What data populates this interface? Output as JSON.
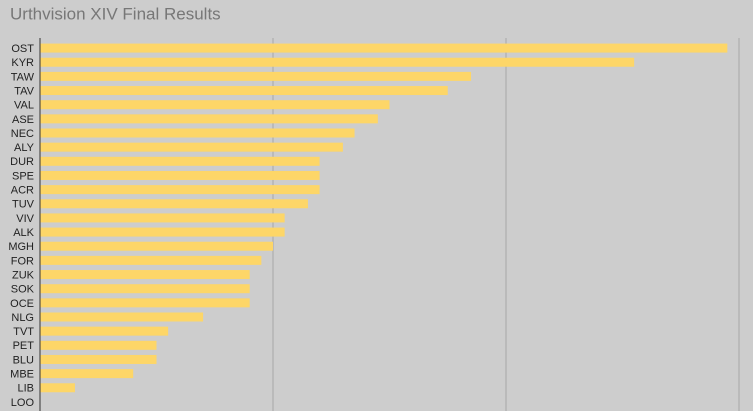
{
  "chart_data": {
    "type": "bar",
    "orientation": "horizontal",
    "title": "Urthvision XIV Final Results",
    "categories": [
      "OST",
      "KYR",
      "TAW",
      "TAV",
      "VAL",
      "ASE",
      "NEC",
      "ALY",
      "DUR",
      "SPE",
      "ACR",
      "TUV",
      "VIV",
      "ALK",
      "MGH",
      "FOR",
      "ZUK",
      "SOK",
      "OCE",
      "NLG",
      "TVT",
      "PET",
      "BLU",
      "MBE",
      "LIB",
      "LOO"
    ],
    "values": [
      59,
      51,
      37,
      35,
      30,
      29,
      27,
      26,
      24,
      24,
      24,
      23,
      21,
      21,
      20,
      19,
      18,
      18,
      18,
      14,
      11,
      10,
      10,
      8,
      3,
      0
    ],
    "color": "#fdd668",
    "xlim": [
      0,
      60
    ],
    "xticks": [
      0,
      20,
      40,
      60
    ],
    "grid": true
  }
}
